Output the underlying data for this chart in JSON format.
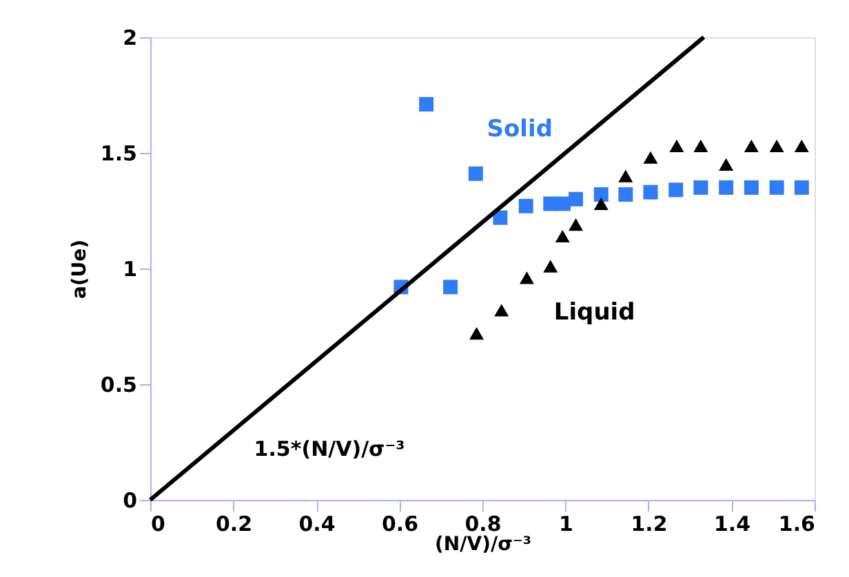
{
  "chart_data": {
    "type": "scatter",
    "xlabel": "(N/V)/σ⁻³",
    "ylabel": "a(Ue)",
    "xlim": [
      0,
      1.6
    ],
    "ylim": [
      0,
      2
    ],
    "xticks": [
      0,
      0.2,
      0.4,
      0.6,
      0.8,
      1,
      1.2,
      1.4,
      1.6
    ],
    "yticks": [
      0,
      0.5,
      1,
      1.5,
      2
    ],
    "grid": false,
    "legend": false,
    "series": [
      {
        "name": "Solid",
        "color": "#2f7cf6",
        "marker": "square",
        "x": [
          0.604,
          0.665,
          0.723,
          0.784,
          0.843,
          0.905,
          0.964,
          0.995,
          1.025,
          1.086,
          1.145,
          1.205,
          1.266,
          1.326,
          1.387,
          1.448,
          1.509,
          1.569
        ],
        "values": [
          0.92,
          1.71,
          0.92,
          1.41,
          1.22,
          1.27,
          1.28,
          1.28,
          1.3,
          1.32,
          1.32,
          1.33,
          1.34,
          1.35,
          1.35,
          1.35,
          1.35,
          1.35
        ]
      },
      {
        "name": "Liquid",
        "color": "#000000",
        "marker": "triangle",
        "x": [
          0.786,
          0.846,
          0.907,
          0.964,
          0.993,
          1.025,
          1.086,
          1.145,
          1.205,
          1.268,
          1.326,
          1.387,
          1.448,
          1.509,
          1.569
        ],
        "values": [
          0.72,
          0.82,
          0.96,
          1.01,
          1.14,
          1.19,
          1.28,
          1.4,
          1.48,
          1.53,
          1.53,
          1.45,
          1.53,
          1.53,
          1.53
        ]
      },
      {
        "type": "line",
        "color": "#000000",
        "line_style": "solid",
        "x": [
          0,
          1.3333
        ],
        "values": [
          0,
          2
        ]
      }
    ],
    "annotations": [
      "1.5*(N/V)/σ⁻³"
    ]
  }
}
